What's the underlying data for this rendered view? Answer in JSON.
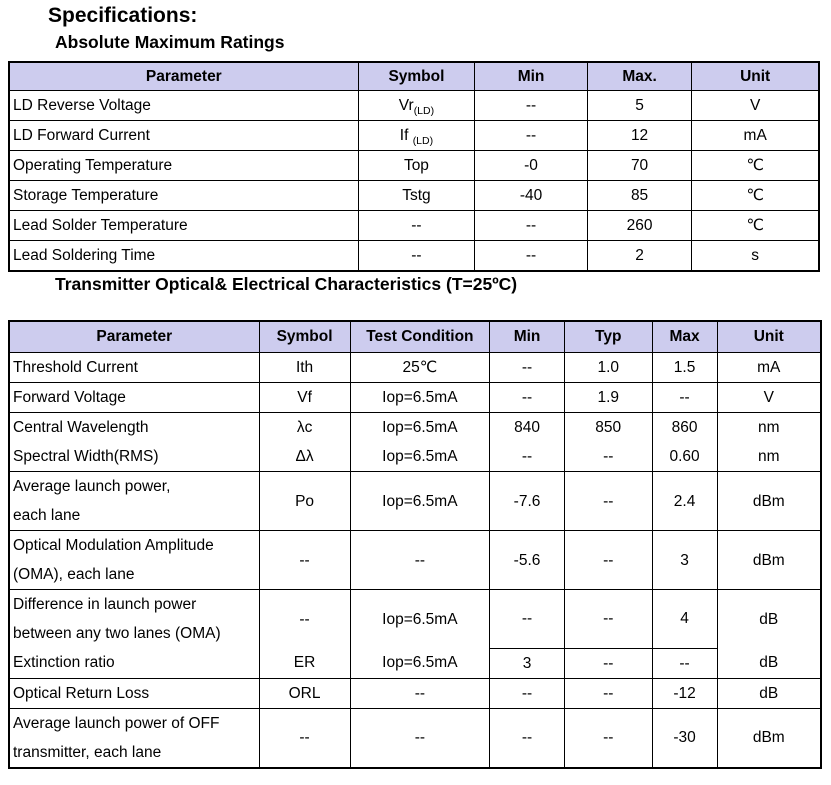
{
  "page": {
    "title": "Specifications:",
    "section1_title": "Absolute Maximum Ratings",
    "section2_title": "Transmitter Optical& Electrical Characteristics (T=25ºC)"
  },
  "colors": {
    "header_bg": "#cdccee",
    "border": "#000000",
    "text": "#000000"
  },
  "tables": [
    {
      "name": "absolute-maximum-ratings-table",
      "columns": [
        {
          "label": "Parameter",
          "width": "43.1%",
          "align": "left"
        },
        {
          "label": "Symbol",
          "width": "14.4%",
          "align": "center"
        },
        {
          "label": "Min",
          "width": "13.9%",
          "align": "center"
        },
        {
          "label": "Max.",
          "width": "12.9%",
          "align": "center"
        },
        {
          "label": "Unit",
          "width": "15.7%",
          "align": "center"
        }
      ],
      "rows": [
        {
          "cells": [
            "LD Reverse Voltage",
            "Vr_{(LD)}",
            "--",
            "5",
            "V"
          ]
        },
        {
          "cells": [
            "LD Forward Current",
            "If _{(LD)}",
            "--",
            "12",
            "mA"
          ]
        },
        {
          "cells": [
            "Operating Temperature",
            "Top",
            "-0",
            "70",
            "℃"
          ]
        },
        {
          "cells": [
            "Storage Temperature",
            "Tstg",
            "-40",
            "85",
            "℃"
          ]
        },
        {
          "cells": [
            "Lead Solder Temperature",
            "--",
            "--",
            "260",
            "℃"
          ]
        },
        {
          "cells": [
            "Lead Soldering Time",
            "--",
            "--",
            "2",
            "s"
          ]
        }
      ]
    },
    {
      "name": "transmitter-characteristics-table",
      "columns": [
        {
          "label": "Parameter",
          "width": "30.8%",
          "align": "left"
        },
        {
          "label": "Symbol",
          "width": "11.2%",
          "align": "center"
        },
        {
          "label": "Test Condition",
          "width": "17.2%",
          "align": "center"
        },
        {
          "label": "Min",
          "width": "9.2%",
          "align": "center"
        },
        {
          "label": "Typ",
          "width": "10.8%",
          "align": "center"
        },
        {
          "label": "Max",
          "width": "8.0%",
          "align": "center"
        },
        {
          "label": "Unit",
          "width": "12.8%",
          "align": "center"
        }
      ],
      "rows": [
        {
          "cells": [
            "Threshold Current",
            "Ith",
            "25℃",
            "--",
            "1.0",
            "1.5",
            "mA"
          ]
        },
        {
          "cells": [
            "Forward Voltage",
            "Vf",
            "Iop=6.5mA",
            "--",
            "1.9",
            "--",
            "V"
          ]
        },
        {
          "cells": [
            "Central Wavelength",
            "λc",
            "Iop=6.5mA",
            "840",
            "850",
            "860",
            "nm"
          ]
        },
        {
          "cells": [
            "Spectral Width(RMS)",
            "Δλ",
            "Iop=6.5mA",
            "--",
            "--",
            "0.60",
            "nm"
          ],
          "no_top_border_cols": [
            0,
            1,
            2,
            3,
            4,
            5,
            6
          ]
        },
        {
          "cells": [
            "Average launch power,\neach lane",
            "Po",
            "Iop=6.5mA",
            "-7.6",
            "--",
            "2.4",
            "dBm"
          ]
        },
        {
          "cells": [
            "Optical Modulation Amplitude\n(OMA), each lane",
            "--",
            "--",
            "-5.6",
            "--",
            "3",
            "dBm"
          ]
        },
        {
          "cells": [
            "Difference in launch power\nbetween any two lanes (OMA)",
            "--",
            "Iop=6.5mA",
            "--",
            "--",
            "4",
            "dB"
          ]
        },
        {
          "cells": [
            "Extinction ratio",
            "ER",
            "Iop=6.5mA",
            "3",
            "--",
            "--",
            "dB"
          ],
          "no_top_border_cols": [
            0,
            1,
            2,
            6
          ]
        },
        {
          "cells": [
            "Optical Return Loss",
            "ORL",
            "--",
            "--",
            "--",
            "-12",
            "dB"
          ]
        },
        {
          "cells": [
            "Average launch power of OFF\ntransmitter, each lane",
            "--",
            "--",
            "--",
            "--",
            "-30",
            "dBm"
          ]
        }
      ]
    }
  ]
}
